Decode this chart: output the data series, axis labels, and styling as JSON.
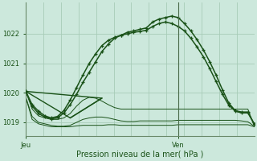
{
  "bg_color": "#cce8dc",
  "grid_color": "#a8ccb8",
  "line_color": "#1a5218",
  "axis_color": "#6a8a6a",
  "xlabel": "Pression niveau de la mer( hPa )",
  "xlabel_color": "#1a5218",
  "xtick_labels": [
    "Jeu",
    "Ven"
  ],
  "xtick_positions": [
    0,
    24
  ],
  "ytick_labels": [
    "1019",
    "1020",
    "1021",
    "1022"
  ],
  "ytick_values": [
    1019,
    1020,
    1021,
    1022
  ],
  "ylim": [
    1018.55,
    1023.05
  ],
  "xlim": [
    0,
    36
  ],
  "vline_x": 24,
  "flat1": {
    "x": [
      0,
      1,
      2,
      3,
      4,
      5,
      6,
      7,
      8,
      9,
      10,
      11,
      12,
      13,
      14,
      15,
      16,
      17,
      18,
      19,
      20,
      21,
      22,
      23,
      24,
      25,
      26,
      27,
      28,
      29,
      30,
      31,
      32,
      33,
      34,
      35,
      36
    ],
    "y": [
      1019.85,
      1019.1,
      1018.95,
      1018.9,
      1018.85,
      1018.85,
      1018.85,
      1018.85,
      1018.88,
      1018.9,
      1018.9,
      1018.9,
      1018.9,
      1018.92,
      1018.92,
      1018.9,
      1018.9,
      1018.9,
      1018.9,
      1018.9,
      1018.9,
      1018.9,
      1018.9,
      1018.9,
      1018.92,
      1018.92,
      1018.92,
      1018.92,
      1018.92,
      1018.92,
      1018.92,
      1018.92,
      1018.92,
      1018.92,
      1018.92,
      1018.92,
      1018.85
    ]
  },
  "flat2": {
    "x": [
      0,
      1,
      2,
      3,
      4,
      5,
      6,
      7,
      8,
      9,
      10,
      11,
      12,
      13,
      14,
      15,
      16,
      17,
      18,
      19,
      20,
      21,
      22,
      23,
      24,
      25,
      26,
      27,
      28,
      29,
      30,
      31,
      32,
      33,
      34,
      35,
      36
    ],
    "y": [
      1019.85,
      1019.2,
      1019.0,
      1018.95,
      1018.9,
      1018.87,
      1018.87,
      1018.9,
      1019.0,
      1019.1,
      1019.15,
      1019.18,
      1019.18,
      1019.15,
      1019.1,
      1019.05,
      1019.03,
      1019.03,
      1019.05,
      1019.05,
      1019.05,
      1019.05,
      1019.05,
      1019.05,
      1019.07,
      1019.07,
      1019.07,
      1019.07,
      1019.07,
      1019.07,
      1019.07,
      1019.07,
      1019.07,
      1019.07,
      1019.05,
      1019.02,
      1018.87
    ]
  },
  "zigzag1": {
    "x": [
      0,
      1,
      2,
      3,
      4,
      5,
      6,
      7,
      8,
      9,
      10,
      11,
      12,
      13,
      14,
      15,
      16,
      17,
      18,
      19,
      20,
      21,
      22,
      23,
      24,
      25,
      26,
      27,
      28,
      29,
      30,
      31,
      32,
      33,
      34,
      35,
      36
    ],
    "y": [
      1020.05,
      1019.45,
      1019.22,
      1019.15,
      1019.1,
      1019.1,
      1019.15,
      1019.3,
      1019.55,
      1019.75,
      1019.85,
      1019.82,
      1019.72,
      1019.6,
      1019.5,
      1019.45,
      1019.45,
      1019.45,
      1019.45,
      1019.45,
      1019.45,
      1019.45,
      1019.45,
      1019.45,
      1019.45,
      1019.45,
      1019.45,
      1019.45,
      1019.45,
      1019.45,
      1019.45,
      1019.45,
      1019.45,
      1019.45,
      1019.45,
      1019.45,
      1018.87
    ]
  },
  "curve_main": {
    "x": [
      0,
      1,
      2,
      3,
      4,
      5,
      6,
      7,
      8,
      9,
      10,
      11,
      12,
      13,
      14,
      15,
      16,
      17,
      18,
      19,
      20,
      21,
      22,
      23,
      24,
      25,
      26,
      27,
      28,
      29,
      30,
      31,
      32,
      33,
      34,
      35,
      36
    ],
    "y": [
      1020.05,
      1019.55,
      1019.3,
      1019.18,
      1019.12,
      1019.15,
      1019.32,
      1019.6,
      1019.95,
      1020.35,
      1020.7,
      1021.05,
      1021.4,
      1021.65,
      1021.85,
      1021.95,
      1022.05,
      1022.1,
      1022.15,
      1022.2,
      1022.4,
      1022.5,
      1022.55,
      1022.6,
      1022.55,
      1022.35,
      1022.1,
      1021.8,
      1021.45,
      1021.05,
      1020.6,
      1020.1,
      1019.65,
      1019.4,
      1019.35,
      1019.35,
      1018.95
    ]
  },
  "curve_alt": {
    "x": [
      0,
      1,
      2,
      3,
      4,
      5,
      6,
      7,
      8,
      9,
      10,
      11,
      12,
      13,
      14,
      15,
      16,
      17,
      18,
      19,
      20,
      21,
      22,
      23,
      24,
      25,
      26,
      27,
      28,
      29,
      30,
      31,
      32,
      33,
      34,
      35,
      36
    ],
    "y": [
      1020.05,
      1019.6,
      1019.38,
      1019.22,
      1019.15,
      1019.2,
      1019.4,
      1019.75,
      1020.18,
      1020.6,
      1021.0,
      1021.32,
      1021.6,
      1021.78,
      1021.88,
      1021.95,
      1022.0,
      1022.05,
      1022.08,
      1022.12,
      1022.25,
      1022.35,
      1022.4,
      1022.35,
      1022.25,
      1022.1,
      1021.85,
      1021.55,
      1021.22,
      1020.82,
      1020.38,
      1019.95,
      1019.58,
      1019.38,
      1019.32,
      1019.32,
      1018.95
    ]
  },
  "triangle_up": {
    "x": [
      0,
      7,
      12
    ],
    "y": [
      1020.05,
      1019.15,
      1019.82
    ]
  },
  "triangle_down": {
    "x": [
      0,
      12,
      7
    ],
    "y": [
      1020.05,
      1019.82,
      1019.15
    ]
  }
}
